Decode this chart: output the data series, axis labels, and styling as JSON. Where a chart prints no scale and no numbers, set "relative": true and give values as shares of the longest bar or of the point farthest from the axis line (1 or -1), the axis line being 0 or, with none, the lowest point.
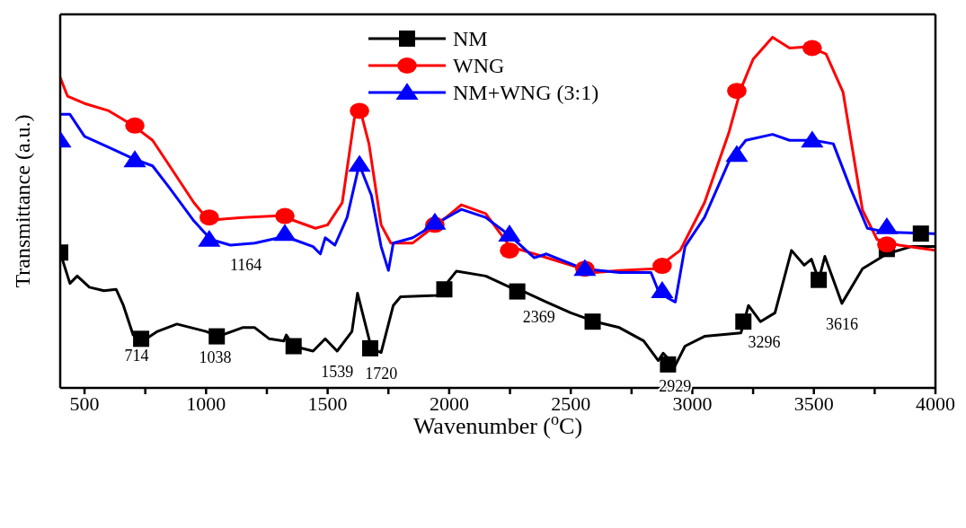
{
  "chart_data": {
    "type": "line",
    "relative": true,
    "xlabel": "Wavenumber ($^{o}$C)",
    "ylabel": "Transmittance (a.u.)",
    "xlim": [
      400,
      4000
    ],
    "xticks": [
      500,
      {
        "value": 750,
        "label": null
      },
      1000,
      {
        "value": 1250,
        "label": null
      },
      1500,
      {
        "value": 1750,
        "label": null
      },
      2000,
      {
        "value": 2250,
        "label": null
      },
      2500,
      {
        "value": 2750,
        "label": null
      },
      3000,
      {
        "value": 3250,
        "label": null
      },
      3500,
      {
        "value": 3750,
        "label": null
      },
      4000
    ],
    "legend": "top",
    "grid": false,
    "line_style": "solid",
    "series": [
      {
        "name": "NM",
        "color": "#000000",
        "x": [
          400,
          440,
          470,
          520,
          580,
          630,
          660,
          700,
          740,
          800,
          880,
          1000,
          1050,
          1150,
          1200,
          1260,
          1320,
          1330,
          1360,
          1440,
          1490,
          1539,
          1600,
          1623,
          1680,
          1720,
          1770,
          1800,
          1950,
          2030,
          2150,
          2250,
          2300,
          2400,
          2500,
          2600,
          2700,
          2800,
          2860,
          2880,
          2929,
          2970,
          3050,
          3200,
          3231,
          3280,
          3340,
          3408,
          3460,
          3490,
          3520,
          3545,
          3615,
          3700,
          3800,
          3900,
          4000
        ],
        "values": [
          0.386,
          0.298,
          0.319,
          0.287,
          0.277,
          0.281,
          0.235,
          0.151,
          0.134,
          0.161,
          0.182,
          0.161,
          0.147,
          0.172,
          0.172,
          0.14,
          0.134,
          0.151,
          0.119,
          0.105,
          0.14,
          0.105,
          0.161,
          0.27,
          0.113,
          0.101,
          0.235,
          0.26,
          0.264,
          0.333,
          0.319,
          0.287,
          0.277,
          0.245,
          0.214,
          0.189,
          0.172,
          0.134,
          0.078,
          0.099,
          0.063,
          0.119,
          0.147,
          0.157,
          0.235,
          0.189,
          0.214,
          0.392,
          0.35,
          0.367,
          0.308,
          0.375,
          0.241,
          0.34,
          0.382,
          0.403,
          0.403
        ]
      },
      {
        "name": "WNG",
        "color": "#ff0000",
        "x": [
          400,
          430,
          500,
          600,
          700,
          780,
          850,
          950,
          1000,
          1050,
          1150,
          1300,
          1350,
          1450,
          1500,
          1560,
          1610,
          1635,
          1670,
          1720,
          1760,
          1850,
          1985,
          2050,
          2150,
          2250,
          2350,
          2500,
          2600,
          2700,
          2850,
          2950,
          3050,
          3150,
          3200,
          3250,
          3330,
          3400,
          3480,
          3550,
          3620,
          3700,
          3760,
          3850,
          4000
        ],
        "values": [
          0.885,
          0.832,
          0.811,
          0.79,
          0.748,
          0.706,
          0.633,
          0.528,
          0.486,
          0.48,
          0.486,
          0.491,
          0.48,
          0.455,
          0.465,
          0.528,
          0.769,
          0.79,
          0.696,
          0.465,
          0.413,
          0.413,
          0.485,
          0.522,
          0.497,
          0.403,
          0.382,
          0.35,
          0.329,
          0.335,
          0.34,
          0.392,
          0.528,
          0.727,
          0.853,
          0.937,
          1,
          0.969,
          0.973,
          0.952,
          0.843,
          0.507,
          0.423,
          0.407,
          0.392
        ]
      },
      {
        "name": "NM+WNG (3:1)",
        "color": "#0000ff",
        "x": [
          400,
          440,
          500,
          600,
          700,
          780,
          850,
          950,
          1020,
          1100,
          1200,
          1300,
          1360,
          1440,
          1470,
          1490,
          1530,
          1580,
          1630,
          1680,
          1720,
          1750,
          1770,
          1850,
          1950,
          2050,
          2150,
          2250,
          2350,
          2400,
          2550,
          2700,
          2830,
          2860,
          2900,
          2930,
          2970,
          3050,
          3150,
          3220,
          3330,
          3400,
          3500,
          3580,
          3650,
          3720,
          3800,
          4000
        ],
        "values": [
          0.78,
          0.78,
          0.717,
          0.686,
          0.654,
          0.633,
          0.57,
          0.476,
          0.423,
          0.407,
          0.413,
          0.428,
          0.423,
          0.403,
          0.382,
          0.428,
          0.407,
          0.486,
          0.637,
          0.549,
          0.403,
          0.335,
          0.413,
          0.428,
          0.47,
          0.509,
          0.486,
          0.434,
          0.371,
          0.382,
          0.34,
          0.329,
          0.329,
          0.277,
          0.256,
          0.245,
          0.403,
          0.486,
          0.644,
          0.706,
          0.723,
          0.706,
          0.706,
          0.696,
          0.57,
          0.455,
          0.444,
          0.44
        ]
      },
      {
        "color": "#000000",
        "type": "scatter",
        "marker": "square",
        "x": [
          400,
          733,
          1044,
          1360,
          1675,
          1980,
          2280,
          2590,
          2900,
          3210,
          3520,
          3800,
          3940
        ],
        "values": [
          0.386,
          0.14,
          0.147,
          0.119,
          0.113,
          0.281,
          0.275,
          0.189,
          0.067,
          0.189,
          0.308,
          0.396,
          0.44
        ]
      },
      {
        "color": "#ff0000",
        "type": "scatter",
        "marker": "circle",
        "x": [
          707,
          1013,
          1324,
          1631,
          1941,
          2248,
          2558,
          2876,
          3183,
          3493,
          3800
        ],
        "values": [
          0.748,
          0.486,
          0.49,
          0.79,
          0.465,
          0.392,
          0.34,
          0.348,
          0.847,
          0.969,
          0.409
        ]
      },
      {
        "color": "#0000ff",
        "type": "scatter",
        "marker": "triangle",
        "x": [
          400,
          707,
          1013,
          1324,
          1631,
          1941,
          2248,
          2558,
          2876,
          3183,
          3493,
          3800
        ],
        "values": [
          0.706,
          0.65,
          0.423,
          0.44,
          0.637,
          0.472,
          0.438,
          0.34,
          0.277,
          0.665,
          0.706,
          0.459
        ]
      }
    ],
    "annotations": [
      {
        "text": "714",
        "x": 714,
        "y": 0.151
      },
      {
        "text": "1038",
        "x": 1038,
        "y": 0.147
      },
      {
        "text": "1164",
        "x": 1164,
        "y": 0.41
      },
      {
        "text": "1539",
        "x": 1539,
        "y": 0.105
      },
      {
        "text": "1720",
        "x": 1720,
        "y": 0.101
      },
      {
        "text": "2369",
        "x": 2369,
        "y": 0.26
      },
      {
        "text": "2929",
        "x": 2929,
        "y": 0.063
      },
      {
        "text": "3296",
        "x": 3296,
        "y": 0.19
      },
      {
        "text": "3616",
        "x": 3616,
        "y": 0.241
      }
    ]
  }
}
